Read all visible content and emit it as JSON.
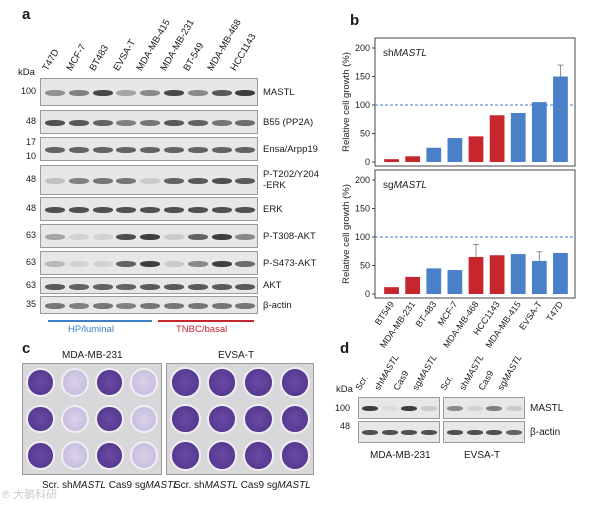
{
  "panels": {
    "a": "a",
    "b": "b",
    "c": "c",
    "d": "d"
  },
  "panel_a": {
    "kda_label": "kDa",
    "cell_lines": [
      "T47D",
      "MCF-7",
      "BT483",
      "EVSA-T",
      "MDA-MB-415",
      "MDA-MB-231",
      "BT-549",
      "MDA-MB-468",
      "HCC1143"
    ],
    "rows": [
      {
        "kda": [
          "100"
        ],
        "label": "MASTL"
      },
      {
        "kda": [
          "48"
        ],
        "label": "B55 (PP2A)"
      },
      {
        "kda": [
          "17",
          "10"
        ],
        "label": "Ensa/Arpp19"
      },
      {
        "kda": [
          "48"
        ],
        "label": "P-T202/Y204\n-ERK"
      },
      {
        "kda": [
          "48"
        ],
        "label": "ERK"
      },
      {
        "kda": [
          "63"
        ],
        "label": "P-T308-AKT"
      },
      {
        "kda": [
          "63"
        ],
        "label": "P-S473-AKT"
      },
      {
        "kda": [
          "63"
        ],
        "label": "AKT"
      },
      {
        "kda": [
          "35"
        ],
        "label": "β-actin"
      }
    ],
    "groups": [
      {
        "label": "HP/luminal",
        "color": "#3f7fc6"
      },
      {
        "label": "TNBC/basal",
        "color": "#c6272f"
      }
    ]
  },
  "chart_data": [
    {
      "type": "bar",
      "title": "shMASTL",
      "ylabel": "Relative cell growth (%)",
      "ylim": [
        0,
        200
      ],
      "yticks": [
        "0",
        "50",
        "100",
        "150",
        "200"
      ],
      "reference_line": 100,
      "categories": [
        "BT549",
        "MDA-MB-231",
        "BT-483",
        "MCF-7",
        "MDA-MB-468",
        "HCC1143",
        "MDA-MB-415",
        "EVSA-T",
        "T47D"
      ],
      "values": [
        5,
        10,
        25,
        42,
        45,
        82,
        86,
        105,
        150
      ],
      "errors": [
        0,
        0,
        0,
        0,
        0,
        0,
        0,
        0,
        20
      ],
      "colors": [
        "#c6272f",
        "#c6272f",
        "#4a80c8",
        "#4a80c8",
        "#c6272f",
        "#c6272f",
        "#4a80c8",
        "#4a80c8",
        "#4a80c8"
      ]
    },
    {
      "type": "bar",
      "title": "sgMASTL",
      "ylabel": "Relative cell growth (%)",
      "ylim": [
        0,
        200
      ],
      "yticks": [
        "0",
        "50",
        "100",
        "150",
        "200"
      ],
      "reference_line": 100,
      "categories": [
        "BT549",
        "MDA-MB-231",
        "BT-483",
        "MCF-7",
        "MDA-MB-468",
        "HCC1143",
        "MDA-MB-415",
        "EVSA-T",
        "T47D"
      ],
      "values": [
        12,
        30,
        45,
        42,
        65,
        68,
        70,
        58,
        72
      ],
      "errors": [
        0,
        0,
        0,
        0,
        22,
        0,
        0,
        16,
        0
      ],
      "colors": [
        "#c6272f",
        "#c6272f",
        "#4a80c8",
        "#4a80c8",
        "#c6272f",
        "#c6272f",
        "#4a80c8",
        "#4a80c8",
        "#4a80c8"
      ]
    }
  ],
  "panel_c": {
    "plate_titles": [
      "MDA-MB-231",
      "EVSA-T"
    ],
    "conditions": [
      "Scr.",
      "sh",
      "MASTL",
      "Cas9",
      "sg",
      "MASTL"
    ]
  },
  "panel_d": {
    "kda_label": "kDa",
    "lanes": [
      "Scr.",
      "shMASTL",
      "Cas9",
      "sgMASTL"
    ],
    "kda": [
      "100",
      "48"
    ],
    "rows": [
      "MASTL",
      "β-actin"
    ],
    "cell_lines": [
      "MDA-MB-231",
      "EVSA-T"
    ]
  },
  "watermark": "大鹅科研"
}
